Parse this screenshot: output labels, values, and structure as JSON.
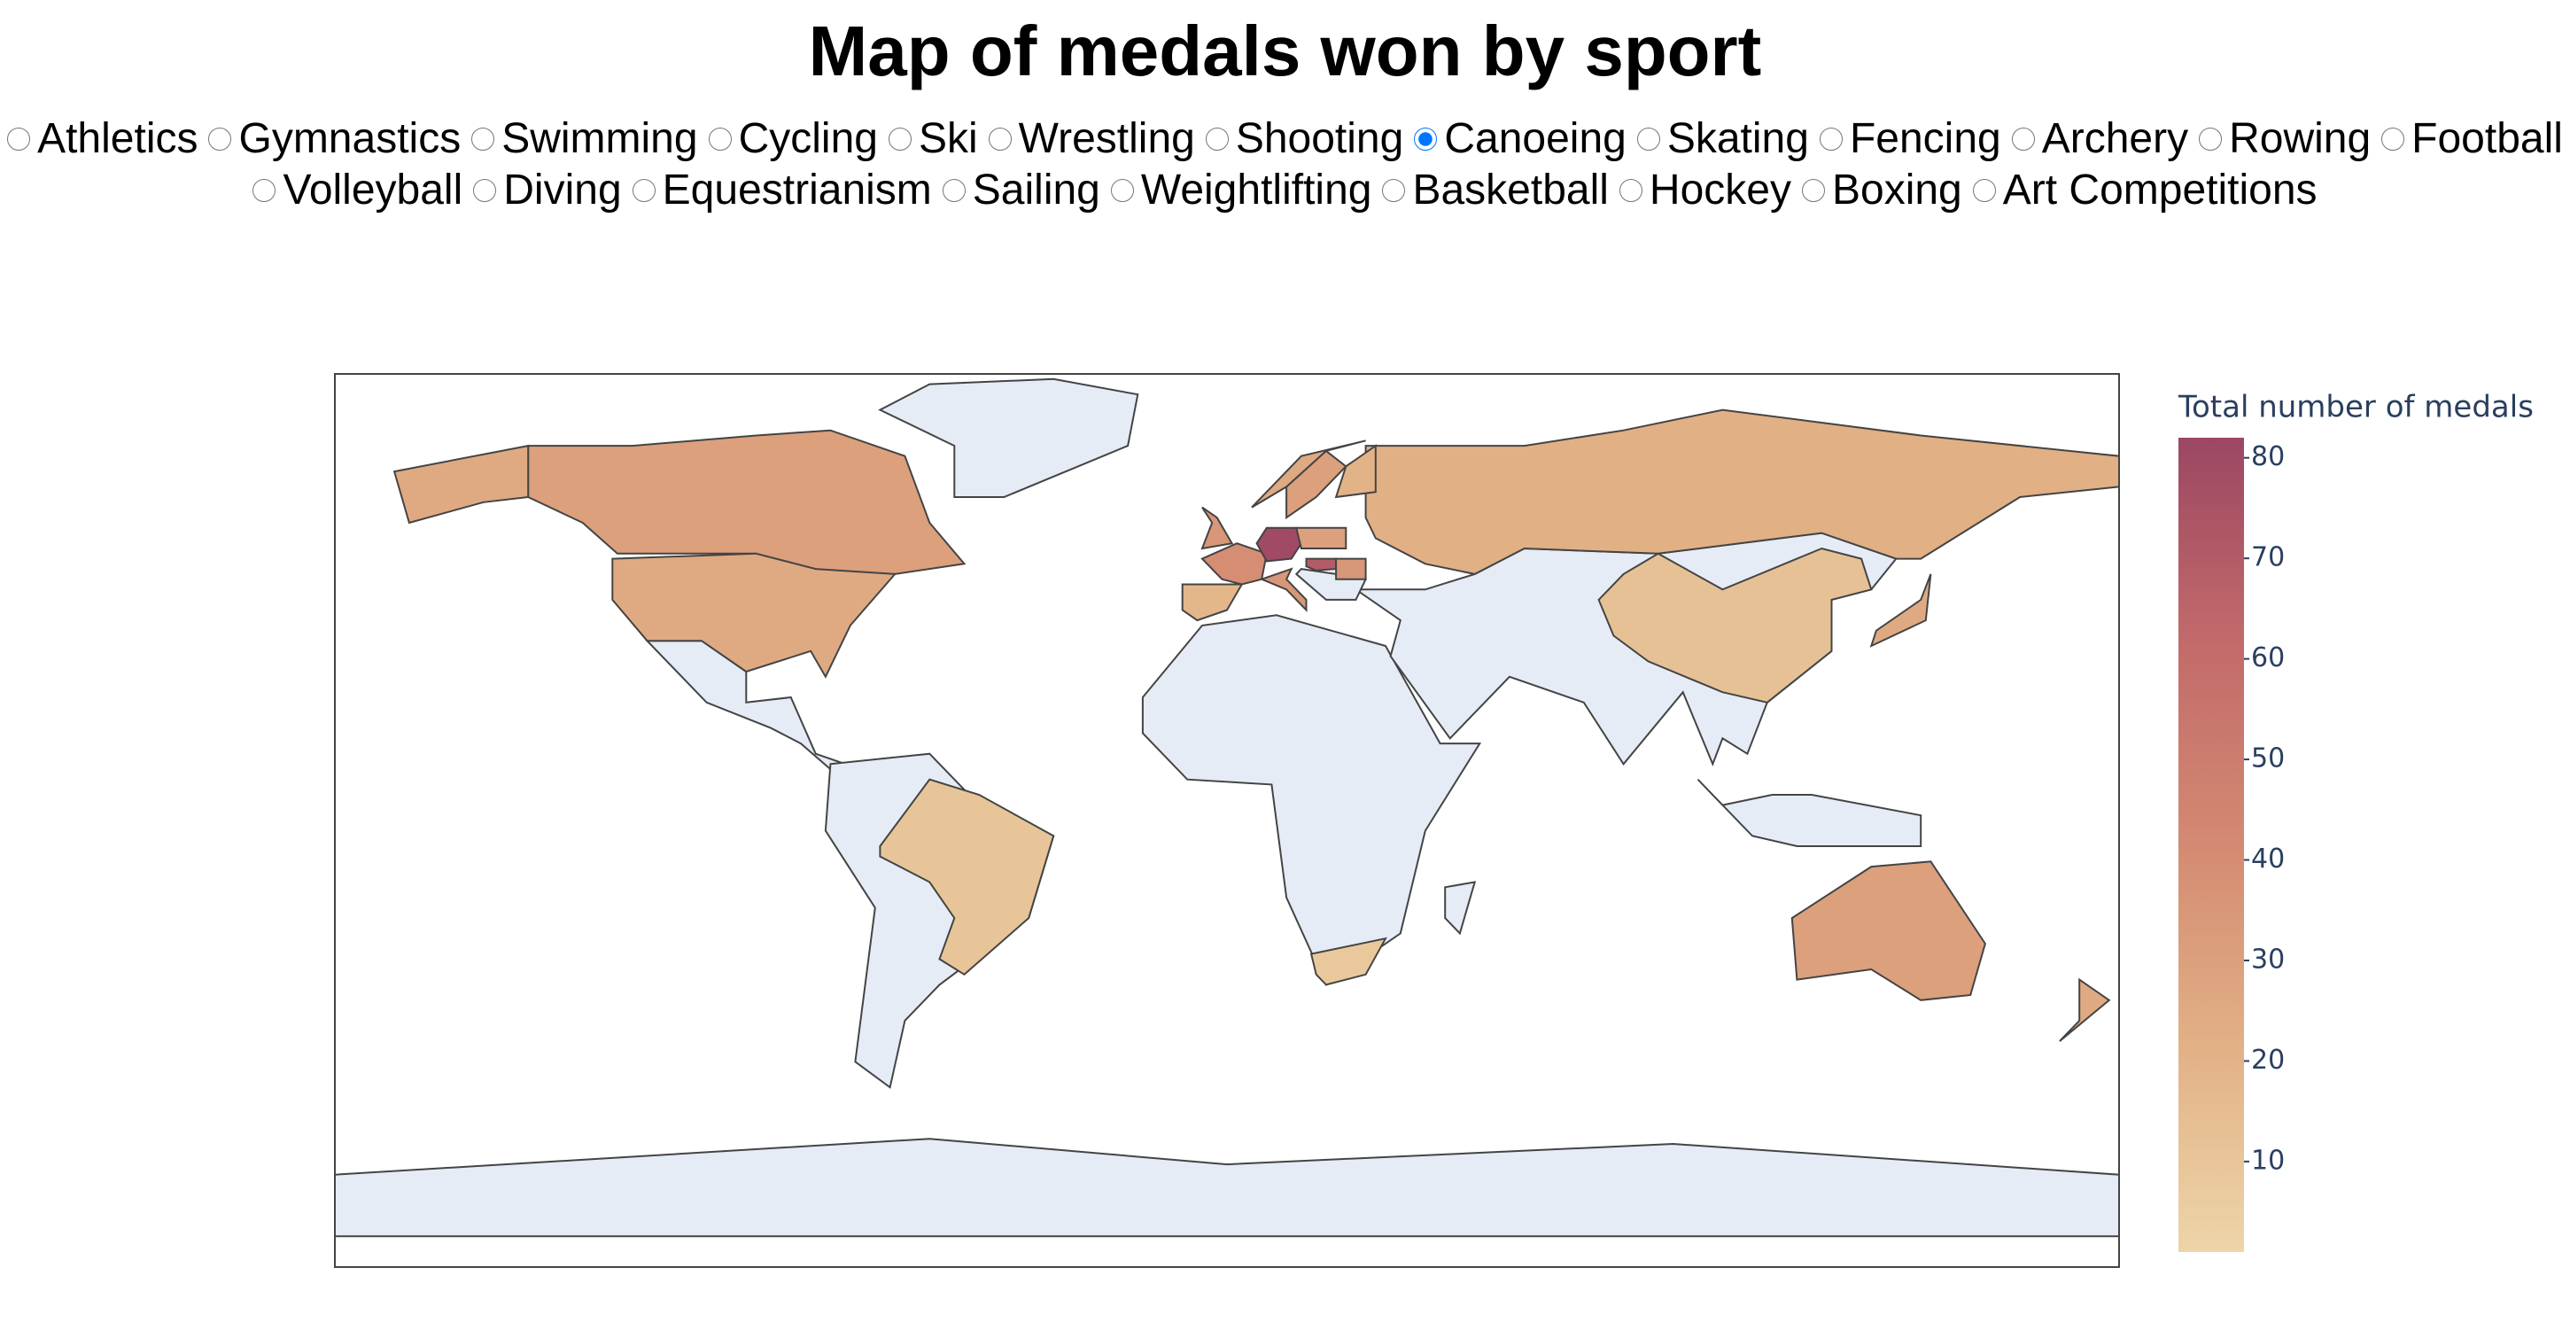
{
  "header": {
    "title": "Map of medals won by sport"
  },
  "options": [
    "Athletics",
    "Gymnastics",
    "Swimming",
    "Cycling",
    "Ski",
    "Wrestling",
    "Shooting",
    "Canoeing",
    "Skating",
    "Fencing",
    "Archery",
    "Rowing",
    "Football",
    "Volleyball",
    "Diving",
    "Equestrianism",
    "Sailing",
    "Weightlifting",
    "Basketball",
    "Hockey",
    "Boxing",
    "Art Competitions"
  ],
  "selected": 7,
  "chart_data": {
    "type": "choropleth",
    "values": [
      30,
      25,
      25,
      10,
      8,
      22,
      12,
      18,
      40,
      80,
      30,
      70,
      35,
      35,
      30,
      25,
      20,
      35,
      30,
      25,
      25
    ],
    "colorbar_title": "Total number of medals",
    "zlim": [
      1,
      82
    ],
    "zticks": [
      10,
      20,
      30,
      40,
      50,
      60,
      70,
      80
    ],
    "colorscale": [
      "#edd5a8",
      "#e2b186",
      "#d48a72",
      "#c26a6a",
      "#9c4763"
    ],
    "missing_color": "#e5ecf6"
  }
}
